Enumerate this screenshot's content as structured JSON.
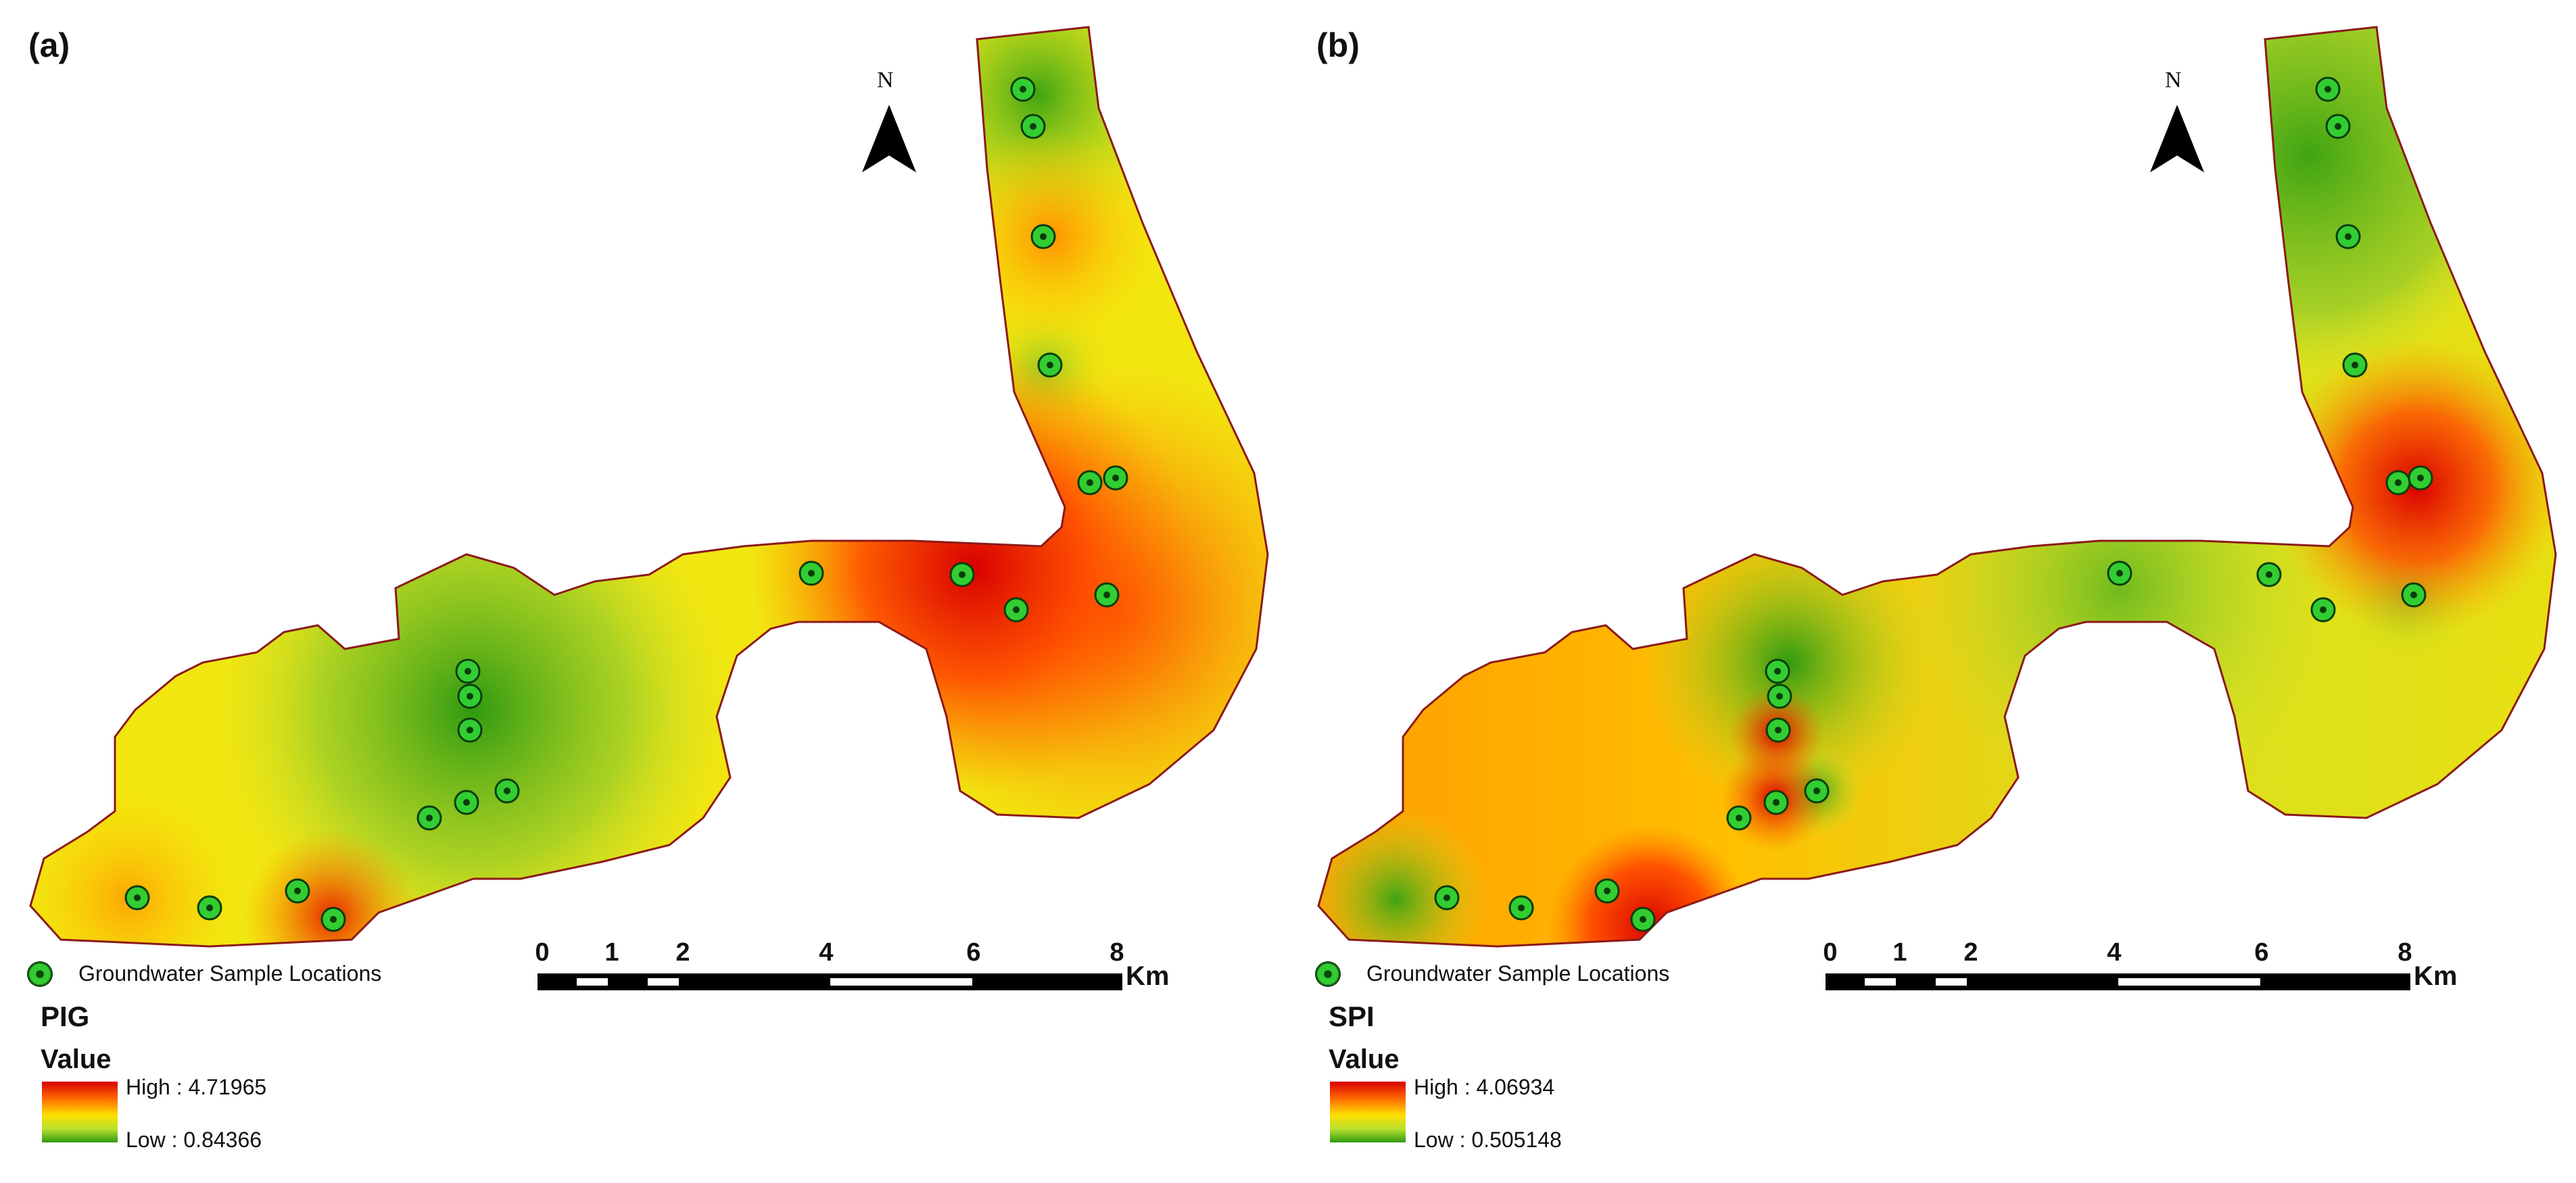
{
  "panels": [
    {
      "label": "(a)",
      "index_name": "PIG",
      "legend": {
        "samples_label": "Groundwater Sample Locations",
        "value_title": "Value",
        "high_label": "High : 4.71965",
        "low_label": "Low : 0.84366",
        "high_value": 4.71965,
        "low_value": 0.84366
      },
      "north_label": "N",
      "scale_bar": {
        "ticks": [
          "0",
          "1",
          "2",
          "4",
          "6",
          "8"
        ],
        "unit": "Km"
      }
    },
    {
      "label": "(b)",
      "index_name": "SPI",
      "legend": {
        "samples_label": "Groundwater Sample Locations",
        "value_title": "Value",
        "high_label": "High : 4.06934",
        "low_label": "Low : 0.505148",
        "high_value": 4.06934,
        "low_value": 0.505148
      },
      "north_label": "N",
      "scale_bar": {
        "ticks": [
          "0",
          "1",
          "2",
          "4",
          "6",
          "8"
        ],
        "unit": "Km"
      }
    }
  ],
  "colors": {
    "high": "#d80000",
    "mid_high": "#ff6a00",
    "mid": "#ffe000",
    "mid_low": "#b8e030",
    "low": "#2f9a10",
    "boundary": "#8b1a1a",
    "sample_point": "#32cd32"
  }
}
